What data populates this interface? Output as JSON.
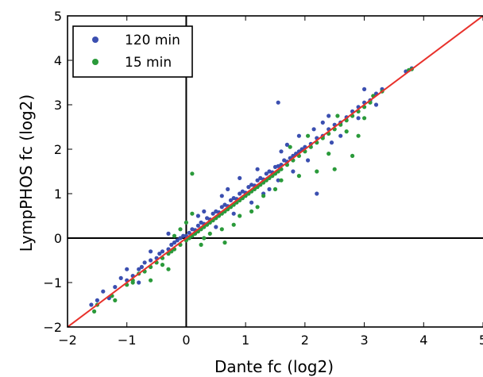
{
  "chart_data": {
    "type": "scatter",
    "title": "",
    "xlabel": "Dante fc (log2)",
    "ylabel": "LympPHOS fc (log2)",
    "xlim": [
      -2,
      5
    ],
    "ylim": [
      -2,
      5
    ],
    "xticks": [
      -2,
      -1,
      0,
      1,
      2,
      3,
      4,
      5
    ],
    "yticks": [
      -2,
      -1,
      0,
      1,
      2,
      3,
      4,
      5
    ],
    "x_tick_labels": [
      "−2",
      "−1",
      "0",
      "1",
      "2",
      "3",
      "4",
      "5"
    ],
    "y_tick_labels": [
      "−2",
      "−1",
      "0",
      "1",
      "2",
      "3",
      "4",
      "5"
    ],
    "reference_lines": {
      "vertical_x": 0,
      "horizontal_y": 0
    },
    "fit_line": {
      "x": [
        -2,
        5
      ],
      "y": [
        -2,
        5
      ],
      "color": "#e8312b"
    },
    "legend_position": "top-left",
    "grid": false,
    "series": [
      {
        "name": "120 min",
        "color": "#3b4fb0",
        "points": [
          [
            -1.6,
            -1.5
          ],
          [
            -1.5,
            -1.4
          ],
          [
            -1.3,
            -1.35
          ],
          [
            -1.2,
            -1.1
          ],
          [
            -1.1,
            -0.9
          ],
          [
            -1.0,
            -0.95
          ],
          [
            -0.9,
            -0.85
          ],
          [
            -0.8,
            -0.7
          ],
          [
            -0.75,
            -0.65
          ],
          [
            -0.7,
            -0.55
          ],
          [
            -0.6,
            -0.5
          ],
          [
            -0.5,
            -0.45
          ],
          [
            -0.45,
            -0.35
          ],
          [
            -0.4,
            -0.3
          ],
          [
            -0.3,
            -0.25
          ],
          [
            -0.25,
            -0.15
          ],
          [
            -0.2,
            -0.1
          ],
          [
            -0.15,
            -0.05
          ],
          [
            -0.1,
            0.0
          ],
          [
            -0.05,
            0.05
          ],
          [
            0.0,
            0.05
          ],
          [
            0.05,
            0.12
          ],
          [
            0.1,
            0.2
          ],
          [
            0.15,
            0.18
          ],
          [
            0.2,
            0.28
          ],
          [
            0.25,
            0.35
          ],
          [
            0.3,
            0.32
          ],
          [
            0.35,
            0.45
          ],
          [
            0.4,
            0.42
          ],
          [
            0.45,
            0.55
          ],
          [
            0.5,
            0.6
          ],
          [
            0.55,
            0.58
          ],
          [
            0.6,
            0.7
          ],
          [
            0.65,
            0.75
          ],
          [
            0.7,
            0.72
          ],
          [
            0.75,
            0.85
          ],
          [
            0.8,
            0.9
          ],
          [
            0.85,
            0.88
          ],
          [
            0.9,
            1.0
          ],
          [
            0.95,
            1.05
          ],
          [
            1.0,
            1.02
          ],
          [
            1.05,
            1.15
          ],
          [
            1.1,
            1.2
          ],
          [
            1.15,
            1.18
          ],
          [
            1.2,
            1.3
          ],
          [
            1.25,
            1.35
          ],
          [
            1.3,
            1.32
          ],
          [
            1.35,
            1.45
          ],
          [
            1.4,
            1.5
          ],
          [
            1.45,
            1.48
          ],
          [
            1.5,
            1.6
          ],
          [
            1.55,
            1.62
          ],
          [
            1.6,
            1.65
          ],
          [
            1.65,
            1.75
          ],
          [
            1.7,
            1.72
          ],
          [
            1.75,
            1.8
          ],
          [
            1.8,
            1.85
          ],
          [
            1.85,
            1.9
          ],
          [
            1.9,
            1.95
          ],
          [
            1.95,
            2.0
          ],
          [
            2.0,
            2.05
          ],
          [
            2.1,
            2.12
          ],
          [
            2.2,
            2.25
          ],
          [
            2.3,
            2.3
          ],
          [
            2.4,
            2.45
          ],
          [
            2.5,
            2.55
          ],
          [
            2.6,
            2.6
          ],
          [
            2.7,
            2.72
          ],
          [
            2.8,
            2.85
          ],
          [
            2.9,
            2.95
          ],
          [
            3.0,
            3.05
          ],
          [
            3.1,
            3.1
          ],
          [
            3.2,
            3.25
          ],
          [
            3.3,
            3.35
          ],
          [
            3.7,
            3.75
          ],
          [
            3.8,
            3.82
          ],
          [
            1.2,
            1.55
          ],
          [
            1.4,
            1.1
          ],
          [
            0.8,
            0.55
          ],
          [
            1.6,
            1.95
          ],
          [
            0.6,
            0.95
          ],
          [
            2.3,
            2.6
          ],
          [
            2.05,
            1.75
          ],
          [
            0.3,
            0.6
          ],
          [
            -0.3,
            0.1
          ],
          [
            0.9,
            1.35
          ],
          [
            1.8,
            1.5
          ],
          [
            2.6,
            2.3
          ],
          [
            0.5,
            0.25
          ],
          [
            1.1,
            0.8
          ],
          [
            1.7,
            2.1
          ],
          [
            2.4,
            2.75
          ],
          [
            3.0,
            3.35
          ],
          [
            2.9,
            2.7
          ],
          [
            1.9,
            2.3
          ],
          [
            0.2,
            0.5
          ],
          [
            -0.6,
            -0.3
          ],
          [
            -1.0,
            -0.7
          ],
          [
            -1.4,
            -1.2
          ],
          [
            -0.8,
            -1.0
          ],
          [
            1.3,
            1.0
          ],
          [
            0.7,
            1.1
          ],
          [
            1.55,
            1.3
          ],
          [
            2.15,
            2.45
          ],
          [
            2.45,
            2.15
          ],
          [
            3.2,
            3.0
          ],
          [
            2.2,
            1.0
          ],
          [
            1.55,
            3.05
          ]
        ]
      },
      {
        "name": "15 min",
        "color": "#2a9a3a",
        "points": [
          [
            -1.5,
            -1.5
          ],
          [
            -1.25,
            -1.3
          ],
          [
            -1.0,
            -1.05
          ],
          [
            -0.9,
            -0.95
          ],
          [
            -0.8,
            -0.8
          ],
          [
            -0.7,
            -0.75
          ],
          [
            -0.6,
            -0.65
          ],
          [
            -0.5,
            -0.55
          ],
          [
            -0.4,
            -0.45
          ],
          [
            -0.3,
            -0.35
          ],
          [
            -0.25,
            -0.3
          ],
          [
            -0.2,
            -0.25
          ],
          [
            -0.1,
            -0.15
          ],
          [
            0.0,
            -0.05
          ],
          [
            0.05,
            0.0
          ],
          [
            0.1,
            0.05
          ],
          [
            0.15,
            0.1
          ],
          [
            0.2,
            0.15
          ],
          [
            0.25,
            0.2
          ],
          [
            0.3,
            0.25
          ],
          [
            0.35,
            0.3
          ],
          [
            0.4,
            0.35
          ],
          [
            0.45,
            0.4
          ],
          [
            0.5,
            0.45
          ],
          [
            0.55,
            0.5
          ],
          [
            0.6,
            0.55
          ],
          [
            0.65,
            0.6
          ],
          [
            0.7,
            0.65
          ],
          [
            0.75,
            0.7
          ],
          [
            0.8,
            0.75
          ],
          [
            0.85,
            0.8
          ],
          [
            0.9,
            0.85
          ],
          [
            0.95,
            0.9
          ],
          [
            1.0,
            0.95
          ],
          [
            1.05,
            1.0
          ],
          [
            1.1,
            1.05
          ],
          [
            1.15,
            1.1
          ],
          [
            1.2,
            1.15
          ],
          [
            1.25,
            1.2
          ],
          [
            1.3,
            1.25
          ],
          [
            1.35,
            1.3
          ],
          [
            1.4,
            1.35
          ],
          [
            1.45,
            1.4
          ],
          [
            1.5,
            1.45
          ],
          [
            1.55,
            1.5
          ],
          [
            1.6,
            1.55
          ],
          [
            1.7,
            1.65
          ],
          [
            1.8,
            1.75
          ],
          [
            1.9,
            1.85
          ],
          [
            2.0,
            1.95
          ],
          [
            2.1,
            2.05
          ],
          [
            2.2,
            2.15
          ],
          [
            2.3,
            2.25
          ],
          [
            2.4,
            2.35
          ],
          [
            2.5,
            2.45
          ],
          [
            2.6,
            2.55
          ],
          [
            2.7,
            2.65
          ],
          [
            2.8,
            2.75
          ],
          [
            2.9,
            2.85
          ],
          [
            3.0,
            2.95
          ],
          [
            3.1,
            3.05
          ],
          [
            3.3,
            3.3
          ],
          [
            3.75,
            3.78
          ],
          [
            3.8,
            3.8
          ],
          [
            1.5,
            1.1
          ],
          [
            1.2,
            0.7
          ],
          [
            0.8,
            0.3
          ],
          [
            0.3,
            0.0
          ],
          [
            1.9,
            1.4
          ],
          [
            2.4,
            1.9
          ],
          [
            0.1,
            0.55
          ],
          [
            -0.3,
            -0.7
          ],
          [
            -0.6,
            -0.95
          ],
          [
            -1.2,
            -1.4
          ],
          [
            -1.55,
            -1.65
          ],
          [
            0.9,
            0.5
          ],
          [
            1.1,
            0.6
          ],
          [
            2.7,
            2.4
          ],
          [
            2.9,
            2.3
          ],
          [
            3.0,
            2.7
          ],
          [
            1.6,
            1.3
          ],
          [
            2.2,
            1.5
          ],
          [
            0.6,
            0.2
          ],
          [
            0.0,
            0.35
          ],
          [
            -0.1,
            0.2
          ],
          [
            0.1,
            1.45
          ],
          [
            2.8,
            1.85
          ],
          [
            2.55,
            2.75
          ],
          [
            0.65,
            -0.1
          ],
          [
            -0.2,
            0.05
          ],
          [
            0.4,
            0.1
          ],
          [
            1.3,
            0.95
          ],
          [
            -0.9,
            -1.0
          ],
          [
            -0.4,
            -0.6
          ],
          [
            0.25,
            -0.15
          ],
          [
            1.75,
            2.05
          ],
          [
            2.05,
            2.3
          ],
          [
            3.15,
            3.2
          ],
          [
            2.5,
            1.55
          ]
        ]
      }
    ]
  }
}
